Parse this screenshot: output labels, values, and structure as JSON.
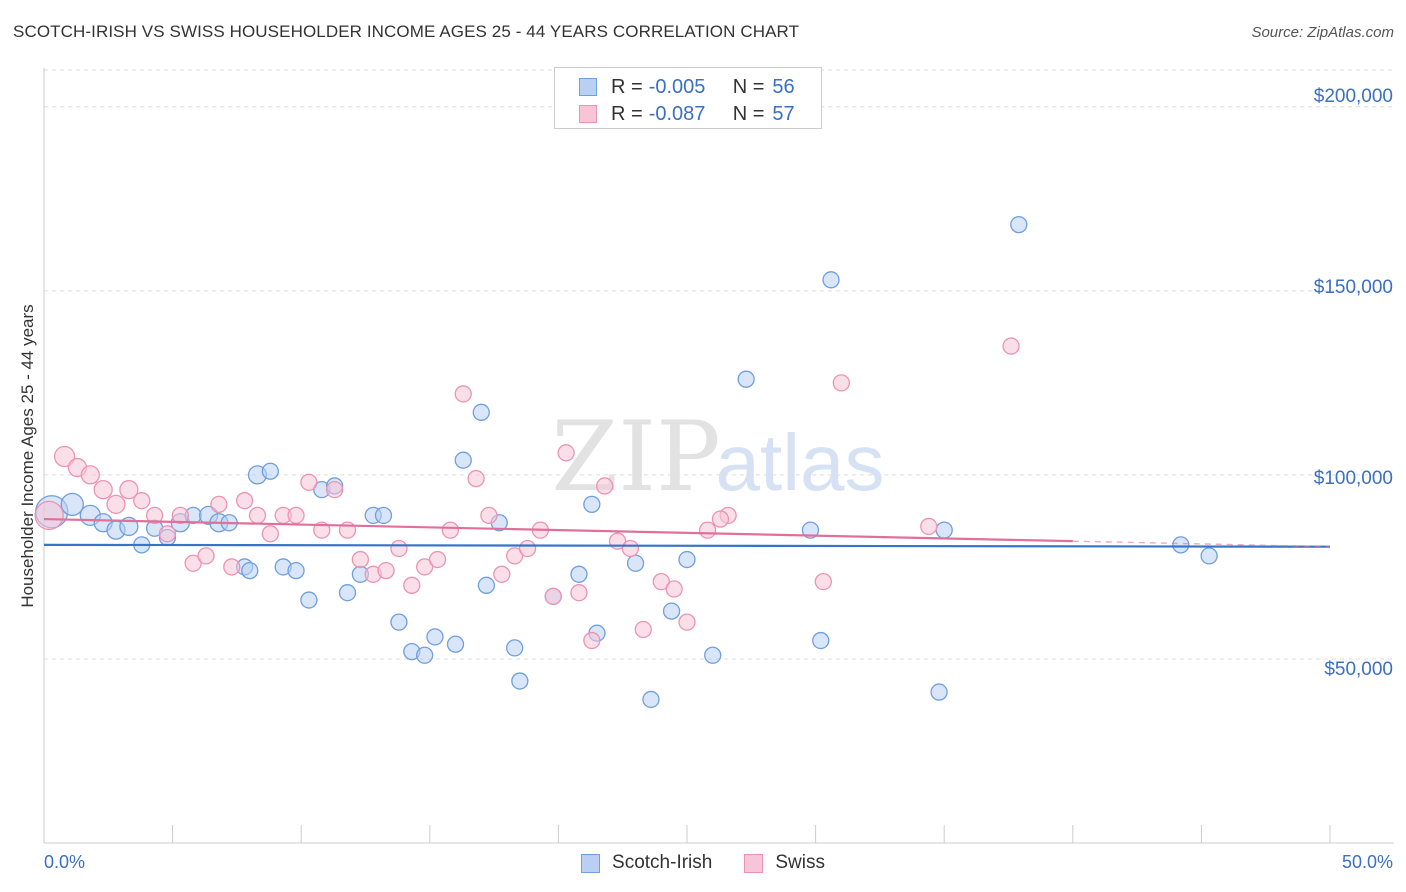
{
  "chart_data": {
    "type": "scatter",
    "title": "SCOTCH-IRISH VS SWISS HOUSEHOLDER INCOME AGES 25 - 44 YEARS CORRELATION CHART",
    "source": "Source: ZipAtlas.com",
    "ylabel": "Householder Income Ages 25 - 44 years",
    "xlabel": "",
    "xlim": [
      0,
      50
    ],
    "ylim": [
      0,
      210000
    ],
    "x_tick_labels": {
      "min": "0.0%",
      "max": "50.0%"
    },
    "y_ticks": [
      {
        "value": 50000,
        "label": "$50,000"
      },
      {
        "value": 100000,
        "label": "$100,000"
      },
      {
        "value": 150000,
        "label": "$150,000"
      },
      {
        "value": 200000,
        "label": "$200,000"
      }
    ],
    "grid": true,
    "watermark": {
      "zip": "ZIP",
      "atlas": "atlas"
    },
    "legend": {
      "position": "top-center",
      "entries": [
        {
          "name": "Scotch-Irish",
          "r_label": "R =",
          "r_value": "-0.005",
          "n_label": "N =",
          "n_value": "56"
        },
        {
          "name": "Swiss",
          "r_label": "R =",
          "r_value": "-0.087",
          "n_label": "N =",
          "n_value": "57"
        }
      ]
    },
    "series": [
      {
        "name": "Scotch-Irish",
        "color": "#6f9fde",
        "fill": "#b9d0f2",
        "trend": {
          "x": [
            0,
            50
          ],
          "y": [
            81000,
            80500
          ],
          "color": "#3575c9"
        },
        "points": [
          [
            0.3,
            90000,
            16
          ],
          [
            1.1,
            92000,
            11
          ],
          [
            1.8,
            89000,
            10
          ],
          [
            2.3,
            87000,
            9
          ],
          [
            2.8,
            85000,
            9
          ],
          [
            3.3,
            86000,
            9
          ],
          [
            3.8,
            81000,
            8
          ],
          [
            4.3,
            85500,
            8
          ],
          [
            4.8,
            83000,
            8
          ],
          [
            5.3,
            87000,
            9
          ],
          [
            5.8,
            89000,
            8
          ],
          [
            6.4,
            89000,
            9
          ],
          [
            6.8,
            87000,
            9
          ],
          [
            7.2,
            87000,
            8
          ],
          [
            7.8,
            75000,
            8
          ],
          [
            8.3,
            100000,
            9
          ],
          [
            8.8,
            101000,
            8
          ],
          [
            9.3,
            75000,
            8
          ],
          [
            9.8,
            74000,
            8
          ],
          [
            10.3,
            66000,
            8
          ],
          [
            10.8,
            96000,
            8
          ],
          [
            11.3,
            97000,
            8
          ],
          [
            11.8,
            68000,
            8
          ],
          [
            12.3,
            73000,
            8
          ],
          [
            12.8,
            89000,
            8
          ],
          [
            13.2,
            89000,
            8
          ],
          [
            13.8,
            60000,
            8
          ],
          [
            14.3,
            52000,
            8
          ],
          [
            14.8,
            51000,
            8
          ],
          [
            15.2,
            56000,
            8
          ],
          [
            16.0,
            54000,
            8
          ],
          [
            16.3,
            104000,
            8
          ],
          [
            17.0,
            117000,
            8
          ],
          [
            17.2,
            70000,
            8
          ],
          [
            17.7,
            87000,
            8
          ],
          [
            18.3,
            53000,
            8
          ],
          [
            18.5,
            44000,
            8
          ],
          [
            19.8,
            67000,
            8
          ],
          [
            20.8,
            73000,
            8
          ],
          [
            21.3,
            92000,
            8
          ],
          [
            21.5,
            57000,
            8
          ],
          [
            23.0,
            76000,
            8
          ],
          [
            23.6,
            39000,
            8
          ],
          [
            24.4,
            63000,
            8
          ],
          [
            25.0,
            77000,
            8
          ],
          [
            26.0,
            51000,
            8
          ],
          [
            27.3,
            126000,
            8
          ],
          [
            29.8,
            85000,
            8
          ],
          [
            30.2,
            55000,
            8
          ],
          [
            30.6,
            153000,
            8
          ],
          [
            34.8,
            41000,
            8
          ],
          [
            35.0,
            85000,
            8
          ],
          [
            37.9,
            168000,
            8
          ],
          [
            44.2,
            81000,
            8
          ],
          [
            45.3,
            78000,
            8
          ],
          [
            8.0,
            74000,
            8
          ]
        ]
      },
      {
        "name": "Swiss",
        "color": "#ec93b3",
        "fill": "#f7c5d6",
        "trend": {
          "x": [
            0,
            40
          ],
          "y": [
            88000,
            82000
          ],
          "dash_to": [
            50,
            80500
          ],
          "color": "#e0709a"
        },
        "points": [
          [
            0.2,
            89000,
            14
          ],
          [
            0.8,
            105000,
            10
          ],
          [
            1.3,
            102000,
            9
          ],
          [
            1.8,
            100000,
            9
          ],
          [
            2.3,
            96000,
            9
          ],
          [
            2.8,
            92000,
            9
          ],
          [
            3.3,
            96000,
            9
          ],
          [
            3.8,
            93000,
            8
          ],
          [
            4.3,
            89000,
            8
          ],
          [
            4.8,
            84000,
            8
          ],
          [
            5.3,
            89000,
            8
          ],
          [
            5.8,
            76000,
            8
          ],
          [
            6.3,
            78000,
            8
          ],
          [
            6.8,
            92000,
            8
          ],
          [
            7.3,
            75000,
            8
          ],
          [
            7.8,
            93000,
            8
          ],
          [
            8.3,
            89000,
            8
          ],
          [
            8.8,
            84000,
            8
          ],
          [
            9.3,
            89000,
            8
          ],
          [
            9.8,
            89000,
            8
          ],
          [
            10.3,
            98000,
            8
          ],
          [
            10.8,
            85000,
            8
          ],
          [
            11.3,
            96000,
            8
          ],
          [
            11.8,
            85000,
            8
          ],
          [
            12.3,
            77000,
            8
          ],
          [
            12.8,
            73000,
            8
          ],
          [
            13.3,
            74000,
            8
          ],
          [
            13.8,
            80000,
            8
          ],
          [
            14.3,
            70000,
            8
          ],
          [
            14.8,
            75000,
            8
          ],
          [
            15.3,
            77000,
            8
          ],
          [
            15.8,
            85000,
            8
          ],
          [
            16.3,
            122000,
            8
          ],
          [
            16.8,
            99000,
            8
          ],
          [
            17.3,
            89000,
            8
          ],
          [
            17.8,
            73000,
            8
          ],
          [
            18.3,
            78000,
            8
          ],
          [
            18.8,
            80000,
            8
          ],
          [
            19.3,
            85000,
            8
          ],
          [
            19.8,
            67000,
            8
          ],
          [
            20.3,
            106000,
            8
          ],
          [
            20.8,
            68000,
            8
          ],
          [
            21.3,
            55000,
            8
          ],
          [
            21.8,
            97000,
            8
          ],
          [
            22.3,
            82000,
            8
          ],
          [
            22.8,
            80000,
            8
          ],
          [
            23.3,
            58000,
            8
          ],
          [
            24.0,
            71000,
            8
          ],
          [
            24.5,
            69000,
            8
          ],
          [
            25.0,
            60000,
            8
          ],
          [
            25.8,
            85000,
            8
          ],
          [
            26.6,
            89000,
            8
          ],
          [
            30.3,
            71000,
            8
          ],
          [
            31.0,
            125000,
            8
          ],
          [
            34.4,
            86000,
            8
          ],
          [
            37.6,
            135000,
            8
          ],
          [
            26.3,
            88000,
            8
          ]
        ]
      }
    ]
  }
}
